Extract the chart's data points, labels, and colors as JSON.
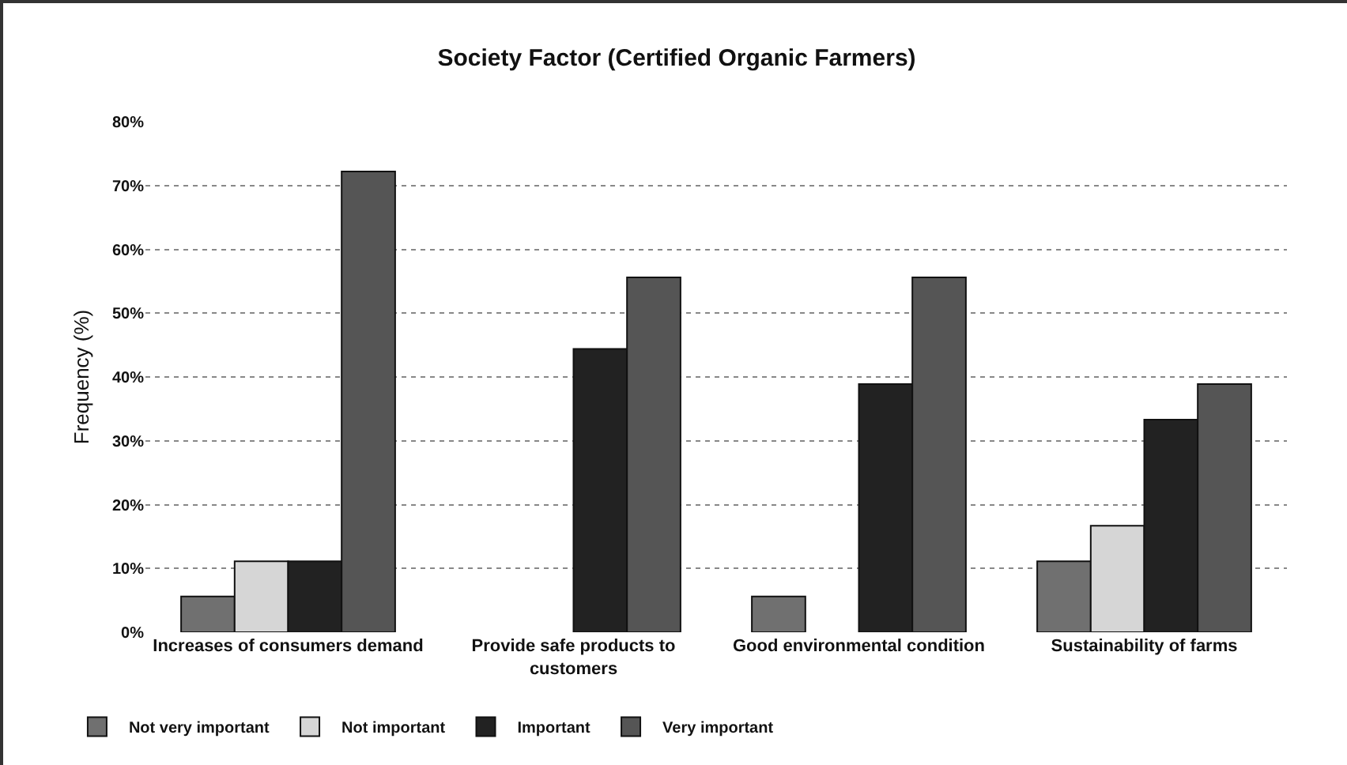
{
  "chart_data": {
    "type": "bar",
    "title": "Society Factor (Certified Organic Farmers)",
    "ylabel": "Frequency (%)",
    "categories": [
      "Increases of consumers demand",
      "Provide safe products to customers",
      "Good environmental condition",
      "Sustainability of farms"
    ],
    "series": [
      {
        "name": "Not very important",
        "color": "#707070",
        "values": [
          5.6,
          0,
          5.6,
          11.1
        ]
      },
      {
        "name": "Not important",
        "color": "#d6d6d6",
        "values": [
          11.1,
          0,
          0,
          16.7
        ]
      },
      {
        "name": "Important",
        "color": "#222222",
        "values": [
          11.1,
          44.4,
          38.9,
          33.3
        ]
      },
      {
        "name": "Very important",
        "color": "#555555",
        "values": [
          72.2,
          55.6,
          55.6,
          38.9
        ]
      }
    ],
    "ylim": [
      0,
      80
    ],
    "yticks": [
      {
        "value": 0,
        "label": "0%"
      },
      {
        "value": 10,
        "label": "10%"
      },
      {
        "value": 20,
        "label": "20%"
      },
      {
        "value": 30,
        "label": "30%"
      },
      {
        "value": 40,
        "label": "40%"
      },
      {
        "value": 50,
        "label": "50%"
      },
      {
        "value": 60,
        "label": "60%"
      },
      {
        "value": 70,
        "label": "70%"
      },
      {
        "value": 80,
        "label": "80%"
      }
    ],
    "grid": "y",
    "legend": "bottom left"
  }
}
